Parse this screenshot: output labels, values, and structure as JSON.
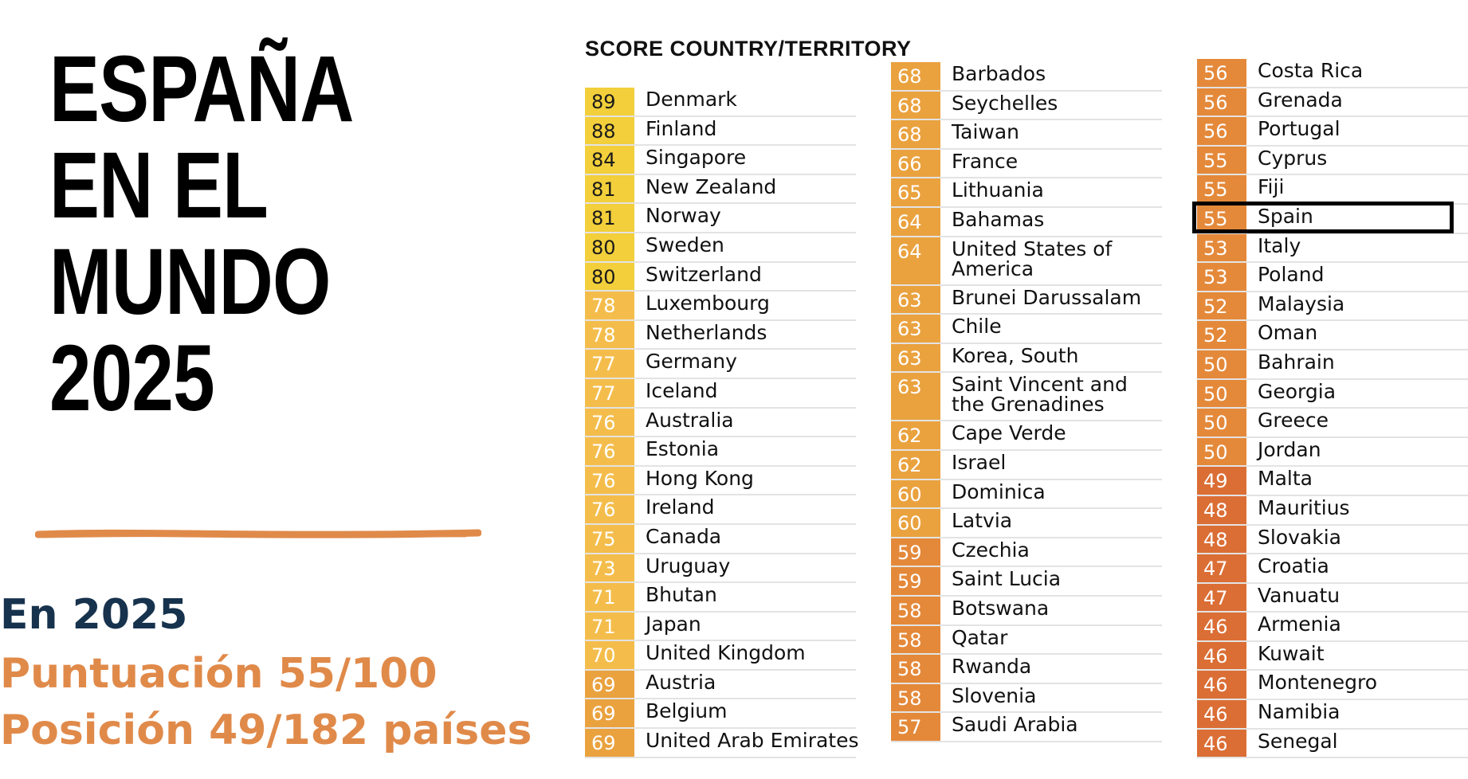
{
  "title_lines": [
    "ESPAÑA",
    "EN EL",
    "MUNDO",
    "2025"
  ],
  "stats": {
    "year": "En 2025",
    "score": "Puntuación 55/100",
    "rank": "Posición 49/182 países"
  },
  "table": {
    "header": "SCORE COUNTRY/TERRITORY",
    "highlighted_country": "Spain",
    "columns": [
      [
        {
          "score": "89",
          "country": "Denmark"
        },
        {
          "score": "88",
          "country": "Finland"
        },
        {
          "score": "84",
          "country": "Singapore"
        },
        {
          "score": "81",
          "country": "New Zealand"
        },
        {
          "score": "81",
          "country": "Norway"
        },
        {
          "score": "80",
          "country": "Sweden"
        },
        {
          "score": "80",
          "country": "Switzerland"
        },
        {
          "score": "78",
          "country": "Luxembourg"
        },
        {
          "score": "78",
          "country": "Netherlands"
        },
        {
          "score": "77",
          "country": "Germany"
        },
        {
          "score": "77",
          "country": "Iceland"
        },
        {
          "score": "76",
          "country": "Australia"
        },
        {
          "score": "76",
          "country": "Estonia"
        },
        {
          "score": "76",
          "country": "Hong Kong"
        },
        {
          "score": "76",
          "country": "Ireland"
        },
        {
          "score": "75",
          "country": "Canada"
        },
        {
          "score": "73",
          "country": "Uruguay"
        },
        {
          "score": "71",
          "country": "Bhutan"
        },
        {
          "score": "71",
          "country": "Japan"
        },
        {
          "score": "70",
          "country": "United Kingdom"
        },
        {
          "score": "69",
          "country": "Austria"
        },
        {
          "score": "69",
          "country": "Belgium"
        },
        {
          "score": "69",
          "country": "United Arab Emirates"
        }
      ],
      [
        {
          "score": "68",
          "country": "Barbados"
        },
        {
          "score": "68",
          "country": "Seychelles"
        },
        {
          "score": "68",
          "country": "Taiwan"
        },
        {
          "score": "66",
          "country": "France"
        },
        {
          "score": "65",
          "country": "Lithuania"
        },
        {
          "score": "64",
          "country": "Bahamas"
        },
        {
          "score": "64",
          "country": "United States of America"
        },
        {
          "score": "63",
          "country": "Brunei Darussalam"
        },
        {
          "score": "63",
          "country": "Chile"
        },
        {
          "score": "63",
          "country": "Korea, South"
        },
        {
          "score": "63",
          "country": "Saint Vincent and the Grenadines"
        },
        {
          "score": "62",
          "country": "Cape Verde"
        },
        {
          "score": "62",
          "country": "Israel"
        },
        {
          "score": "60",
          "country": "Dominica"
        },
        {
          "score": "60",
          "country": "Latvia"
        },
        {
          "score": "59",
          "country": "Czechia"
        },
        {
          "score": "59",
          "country": "Saint Lucia"
        },
        {
          "score": "58",
          "country": "Botswana"
        },
        {
          "score": "58",
          "country": "Qatar"
        },
        {
          "score": "58",
          "country": "Rwanda"
        },
        {
          "score": "58",
          "country": "Slovenia"
        },
        {
          "score": "57",
          "country": "Saudi Arabia"
        }
      ],
      [
        {
          "score": "56",
          "country": "Costa Rica"
        },
        {
          "score": "56",
          "country": "Grenada"
        },
        {
          "score": "56",
          "country": "Portugal"
        },
        {
          "score": "55",
          "country": "Cyprus"
        },
        {
          "score": "55",
          "country": "Fiji"
        },
        {
          "score": "55",
          "country": "Spain"
        },
        {
          "score": "53",
          "country": "Italy"
        },
        {
          "score": "53",
          "country": "Poland"
        },
        {
          "score": "52",
          "country": "Malaysia"
        },
        {
          "score": "52",
          "country": "Oman"
        },
        {
          "score": "50",
          "country": "Bahrain"
        },
        {
          "score": "50",
          "country": "Georgia"
        },
        {
          "score": "50",
          "country": "Greece"
        },
        {
          "score": "50",
          "country": "Jordan"
        },
        {
          "score": "49",
          "country": "Malta"
        },
        {
          "score": "48",
          "country": "Mauritius"
        },
        {
          "score": "48",
          "country": "Slovakia"
        },
        {
          "score": "47",
          "country": "Croatia"
        },
        {
          "score": "47",
          "country": "Vanuatu"
        },
        {
          "score": "46",
          "country": "Armenia"
        },
        {
          "score": "46",
          "country": "Kuwait"
        },
        {
          "score": "46",
          "country": "Montenegro"
        },
        {
          "score": "46",
          "country": "Namibia"
        },
        {
          "score": "46",
          "country": "Senegal"
        }
      ]
    ]
  },
  "colors": {
    "title": "#000000",
    "year_text": "#17324d",
    "accent_orange": "#e08a4a",
    "score_80_plus": "#f2cf3b",
    "score_70s": "#f4bd4b",
    "score_60s": "#eaa23f",
    "score_50s": "#e4893a",
    "score_40s": "#db6e35"
  }
}
